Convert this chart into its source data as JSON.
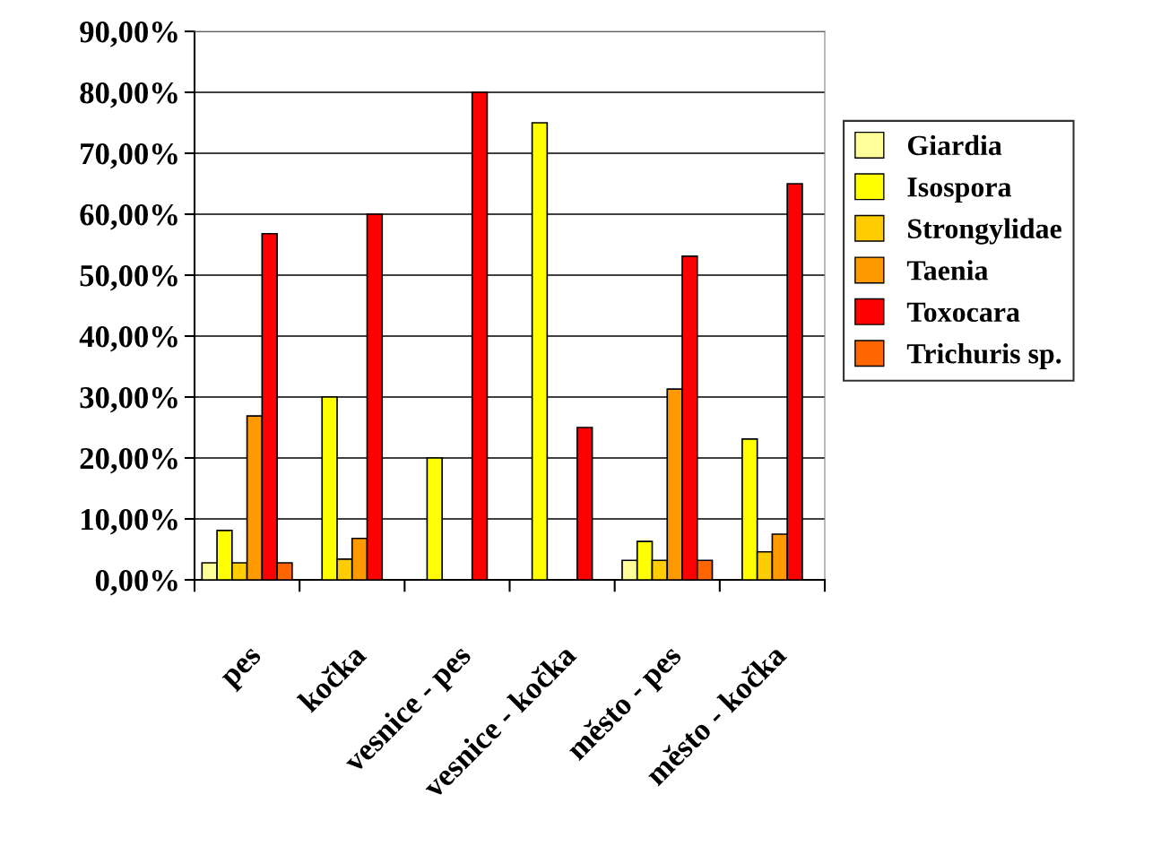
{
  "chart_data": {
    "type": "bar",
    "categories": [
      "pes",
      "kočka",
      "vesnice - pes",
      "vesnice - kočka",
      "město - pes",
      "město - kočka"
    ],
    "series": [
      {
        "name": "Giardia",
        "color": "#ffff99",
        "values": [
          2.8,
          null,
          null,
          null,
          3.2,
          null
        ]
      },
      {
        "name": "Isospora",
        "color": "#ffff00",
        "values": [
          8.1,
          30,
          20,
          75,
          6.3,
          23.1
        ]
      },
      {
        "name": "Strongylidae",
        "color": "#ffcc00",
        "values": [
          2.8,
          3.4,
          null,
          null,
          3.2,
          4.6
        ]
      },
      {
        "name": "Taenia",
        "color": "#ff9900",
        "values": [
          26.9,
          6.8,
          null,
          null,
          31.3,
          7.5
        ]
      },
      {
        "name": "Toxocara",
        "color": "#ff0000",
        "values": [
          56.8,
          60,
          80,
          25,
          53.1,
          65
        ]
      },
      {
        "name": "Trichuris sp.",
        "color": "#ff6600",
        "values": [
          2.8,
          null,
          null,
          null,
          3.2,
          null
        ]
      }
    ],
    "ylim": [
      0,
      90
    ],
    "yticks": [
      {
        "value": 0,
        "label": "0,00%"
      },
      {
        "value": 10,
        "label": "10,00%"
      },
      {
        "value": 20,
        "label": "20,00%"
      },
      {
        "value": 30,
        "label": "30,00%"
      },
      {
        "value": 40,
        "label": "40,00%"
      },
      {
        "value": 50,
        "label": "50,00%"
      },
      {
        "value": 60,
        "label": "60,00%"
      },
      {
        "value": 70,
        "label": "70,00%"
      },
      {
        "value": 80,
        "label": "80,00%"
      },
      {
        "value": 90,
        "label": "90,00%"
      }
    ],
    "grid": "y",
    "legend": "right"
  }
}
